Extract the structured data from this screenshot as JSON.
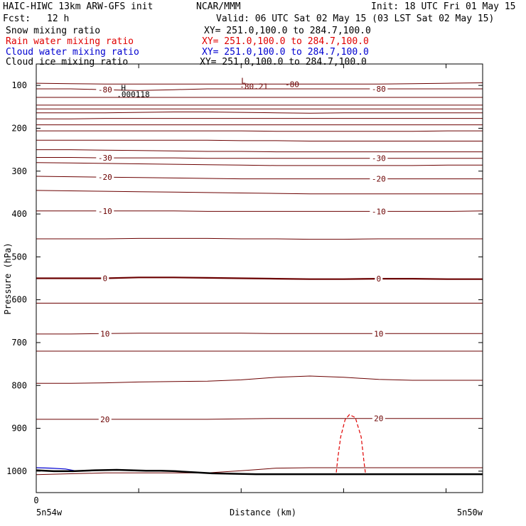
{
  "header": {
    "model": "HAIC-HIWC 13km ARW-GFS init",
    "center": "NCAR/MMM",
    "init": "Init: 18 UTC Fri 01 May 15",
    "fcst_label": "Fcst:",
    "fcst_value": "12 h",
    "valid": "Valid: 06 UTC Sat 02 May 15 (03 LST Sat 02 May 15)"
  },
  "fields": [
    {
      "name": "Snow mixing ratio",
      "xy": "XY= 251.0,100.0 to 284.7,100.0",
      "color": "#000000"
    },
    {
      "name": "Rain water mixing ratio",
      "xy": "XY= 251.0,100.0 to 284.7,100.0",
      "color": "#e00000"
    },
    {
      "name": "Cloud water mixing ratio",
      "xy": "XY= 251.0,100.0 to 284.7,100.0",
      "color": "#0000d0"
    },
    {
      "name": "Cloud ice mixing ratio",
      "xy": "XY= 251.0,100.0 to 284.7,100.0",
      "color": "#000000"
    }
  ],
  "chart_data": {
    "type": "line",
    "ylabel": "Pressure (hPa)",
    "xlabel": "Distance (km)",
    "x_origin_label": "0",
    "x_start_label": "5n54w",
    "x_end_label": "5n50w",
    "ylim": [
      1050,
      50
    ],
    "yticks": [
      100,
      200,
      300,
      400,
      500,
      600,
      700,
      800,
      900,
      1000
    ],
    "ytick_labels": [
      "100",
      "200",
      "300",
      "400",
      "500",
      "600",
      "700",
      "800",
      "900",
      "1000"
    ],
    "x_ticks_km": [
      0,
      70,
      140,
      210,
      280,
      350
    ],
    "xlim": [
      0,
      305
    ],
    "isotherm_color": "#6b0000",
    "isotherms": [
      {
        "label": "-80",
        "p": [
          108,
          108,
          110,
          112,
          110,
          108,
          108,
          108,
          108,
          108,
          108,
          108,
          108,
          108
        ]
      },
      {
        "label": "",
        "p": [
          95,
          96,
          97,
          97,
          97,
          97,
          97,
          97,
          97,
          97,
          97,
          96,
          95,
          94
        ]
      },
      {
        "label": "",
        "p": [
          128,
          128,
          128,
          128,
          128,
          128,
          128,
          128,
          128,
          128,
          128,
          128,
          128,
          128
        ]
      },
      {
        "label": "",
        "p": [
          146,
          146,
          146,
          146,
          146,
          146,
          146,
          146,
          146,
          146,
          146,
          146,
          146,
          146
        ]
      },
      {
        "label": "",
        "p": [
          155,
          155,
          155,
          155,
          155,
          155,
          155,
          155,
          155,
          155,
          155,
          155,
          155,
          155
        ]
      },
      {
        "label": "",
        "p": [
          164,
          164,
          164,
          163,
          162,
          162,
          163,
          164,
          165,
          164,
          164,
          164,
          164,
          164
        ]
      },
      {
        "label": "",
        "p": [
          178,
          178,
          177,
          177,
          177,
          177,
          177,
          177,
          177,
          177,
          177,
          177,
          177,
          177
        ]
      },
      {
        "label": "",
        "p": [
          192,
          192,
          192,
          192,
          192,
          192,
          192,
          192,
          192,
          192,
          192,
          192,
          192,
          192
        ]
      },
      {
        "label": "",
        "p": [
          206,
          206,
          206,
          206,
          206,
          206,
          206,
          207,
          207,
          207,
          207,
          207,
          206,
          206
        ]
      },
      {
        "label": "",
        "p": [
          228,
          228,
          228,
          228,
          228,
          228,
          229,
          229,
          230,
          230,
          230,
          230,
          230,
          230
        ]
      },
      {
        "label": "",
        "p": [
          250,
          250,
          251,
          252,
          253,
          254,
          254,
          255,
          255,
          255,
          255,
          255,
          255,
          255
        ]
      },
      {
        "label": "-30",
        "p": [
          268,
          268,
          269,
          269,
          269,
          270,
          270,
          270,
          270,
          270,
          270,
          270,
          270,
          270
        ]
      },
      {
        "label": "",
        "p": [
          280,
          281,
          282,
          283,
          284,
          285,
          286,
          287,
          287,
          287,
          287,
          287,
          286,
          286
        ]
      },
      {
        "label": "-20",
        "p": [
          312,
          313,
          314,
          315,
          316,
          317,
          318,
          318,
          318,
          318,
          318,
          318,
          318,
          318
        ]
      },
      {
        "label": "",
        "p": [
          345,
          346,
          347,
          348,
          349,
          350,
          351,
          352,
          353,
          353,
          353,
          353,
          353,
          353
        ]
      },
      {
        "label": "-10",
        "p": [
          393,
          393,
          393,
          393,
          393,
          394,
          394,
          394,
          394,
          394,
          394,
          394,
          394,
          393
        ]
      },
      {
        "label": "",
        "p": [
          458,
          458,
          458,
          457,
          457,
          457,
          458,
          458,
          459,
          459,
          458,
          458,
          458,
          458
        ]
      },
      {
        "label": "0",
        "bold": true,
        "p": [
          550,
          550,
          550,
          548,
          548,
          549,
          550,
          551,
          552,
          552,
          551,
          551,
          552,
          552
        ]
      },
      {
        "label": "",
        "p": [
          608,
          608,
          608,
          608,
          608,
          608,
          608,
          608,
          608,
          608,
          608,
          608,
          608,
          608
        ]
      },
      {
        "label": "10",
        "p": [
          680,
          680,
          679,
          678,
          678,
          678,
          678,
          679,
          679,
          679,
          679,
          679,
          679,
          679
        ]
      },
      {
        "label": "",
        "p": [
          720,
          720,
          720,
          720,
          720,
          720,
          720,
          720,
          720,
          720,
          720,
          720,
          720,
          720
        ]
      },
      {
        "label": "",
        "p": [
          795,
          795,
          794,
          792,
          791,
          790,
          787,
          781,
          778,
          781,
          786,
          788,
          788,
          788
        ]
      },
      {
        "label": "20",
        "p": [
          879,
          879,
          879,
          879,
          879,
          879,
          878,
          877,
          877,
          877,
          877,
          877,
          877,
          877
        ]
      },
      {
        "label": "",
        "p": [
          1008,
          1006,
          1004,
          1004,
          1004,
          1004,
          999,
          993,
          992,
          992,
          992,
          992,
          992,
          992
        ]
      }
    ],
    "isotherm_x": [
      0,
      23.5,
      47,
      70,
      94,
      117,
      140,
      164,
      187,
      210,
      234,
      257,
      281,
      305
    ],
    "terrain_line": {
      "x": [
        0,
        12,
        25,
        40,
        55,
        65,
        75,
        85,
        95,
        105,
        120,
        150,
        200,
        250,
        305
      ],
      "p": [
        998,
        1000,
        1000,
        998,
        997,
        998,
        999,
        999,
        1000,
        1002,
        1005,
        1007,
        1007,
        1007,
        1007
      ]
    },
    "cloud_water_contour": {
      "color": "#0000d0",
      "x": [
        0,
        10,
        20,
        28
      ],
      "p": [
        992,
        993,
        995,
        1000
      ]
    },
    "rain_water_contour": {
      "color": "#e00000",
      "x": [
        205,
        206,
        208,
        211,
        214,
        218,
        222,
        224,
        225
      ],
      "p": [
        1003,
        970,
        920,
        880,
        868,
        875,
        920,
        980,
        1007
      ]
    },
    "annotations": [
      {
        "text": "H",
        "x": 58,
        "p": 112
      },
      {
        "text": ".000118",
        "x": 55,
        "p": 127
      },
      {
        "text": "L",
        "x": 140,
        "p": 96
      },
      {
        "text": "-80.21",
        "x": 139,
        "p": 109
      },
      {
        "text": "-80",
        "x": 170,
        "p": 104
      }
    ]
  }
}
